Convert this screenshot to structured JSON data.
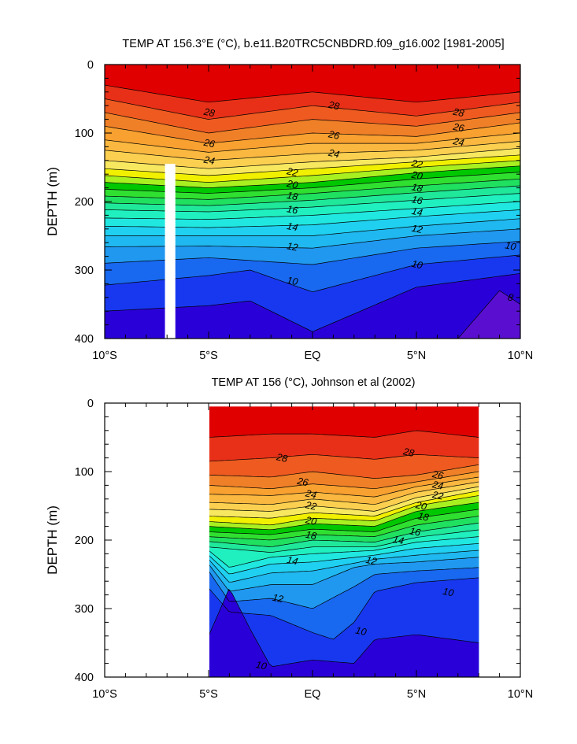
{
  "chart_data": [
    {
      "type": "contour",
      "title": "TEMP AT 156.3°E (°C), b.e11.B20TRC5CNBDRD.f09_g16.002 [1981-2005]",
      "ylabel": "DEPTH (m)",
      "xlabel": "",
      "xlim": [
        -10,
        10
      ],
      "ylim": [
        400,
        0
      ],
      "x_ticks": [
        -10,
        -5,
        0,
        5,
        10
      ],
      "x_tick_labels": [
        "10°S",
        "5°S",
        "EQ",
        "5°N",
        "10°N"
      ],
      "y_ticks": [
        0,
        100,
        200,
        300,
        400
      ],
      "y_tick_labels": [
        "0",
        "100",
        "200",
        "300",
        "400"
      ],
      "gap_band": {
        "x_start": -7.1,
        "x_end": -6.6,
        "depth_start": 145,
        "depth_end": 400
      },
      "contour_levels": [
        8,
        9,
        10,
        11,
        12,
        13,
        14,
        15,
        16,
        17,
        18,
        19,
        20,
        21,
        22,
        23,
        24,
        25,
        26,
        27,
        28,
        29
      ],
      "isotherms": [
        {
          "temp": 29,
          "x": [
            -10,
            -5,
            0,
            5,
            10
          ],
          "depth": [
            30,
            55,
            40,
            55,
            40
          ]
        },
        {
          "temp": 28,
          "x": [
            -10,
            -5,
            0,
            5,
            10
          ],
          "depth": [
            50,
            80,
            60,
            75,
            55
          ]
        },
        {
          "temp": 27,
          "x": [
            -10,
            -5,
            0,
            5,
            10
          ],
          "depth": [
            70,
            100,
            80,
            90,
            70
          ]
        },
        {
          "temp": 26,
          "x": [
            -10,
            -5,
            0,
            5,
            10
          ],
          "depth": [
            90,
            115,
            100,
            105,
            85
          ]
        },
        {
          "temp": 25,
          "x": [
            -10,
            -5,
            0,
            5,
            10
          ],
          "depth": [
            110,
            128,
            115,
            115,
            100
          ]
        },
        {
          "temp": 24,
          "x": [
            -10,
            -5,
            0,
            5,
            10
          ],
          "depth": [
            125,
            140,
            130,
            125,
            112
          ]
        },
        {
          "temp": 23,
          "x": [
            -10,
            -5,
            0,
            5,
            10
          ],
          "depth": [
            140,
            152,
            142,
            135,
            122
          ]
        },
        {
          "temp": 22,
          "x": [
            -10,
            -5,
            0,
            5,
            10
          ],
          "depth": [
            152,
            162,
            152,
            142,
            132
          ]
        },
        {
          "temp": 21,
          "x": [
            -10,
            -5,
            0,
            5,
            10
          ],
          "depth": [
            162,
            172,
            162,
            150,
            140
          ]
        },
        {
          "temp": 20,
          "x": [
            -10,
            -5,
            0,
            5,
            10
          ],
          "depth": [
            172,
            180,
            172,
            158,
            148
          ]
        },
        {
          "temp": 19,
          "x": [
            -10,
            -5,
            0,
            5,
            10
          ],
          "depth": [
            182,
            188,
            180,
            167,
            157
          ]
        },
        {
          "temp": 18,
          "x": [
            -10,
            -5,
            0,
            5,
            10
          ],
          "depth": [
            192,
            197,
            188,
            177,
            167
          ]
        },
        {
          "temp": 17,
          "x": [
            -10,
            -5,
            0,
            5,
            10
          ],
          "depth": [
            202,
            206,
            198,
            187,
            177
          ]
        },
        {
          "temp": 16,
          "x": [
            -10,
            -5,
            0,
            5,
            10
          ],
          "depth": [
            212,
            215,
            208,
            198,
            188
          ]
        },
        {
          "temp": 15,
          "x": [
            -10,
            -5,
            0,
            5,
            10
          ],
          "depth": [
            224,
            226,
            220,
            210,
            200
          ]
        },
        {
          "temp": 14,
          "x": [
            -10,
            -5,
            0,
            5,
            10
          ],
          "depth": [
            236,
            238,
            234,
            222,
            212
          ]
        },
        {
          "temp": 13,
          "x": [
            -10,
            -5,
            0,
            5,
            10
          ],
          "depth": [
            250,
            250,
            250,
            236,
            225
          ]
        },
        {
          "temp": 12,
          "x": [
            -10,
            -5,
            0,
            5,
            10
          ],
          "depth": [
            266,
            265,
            268,
            250,
            240
          ]
        },
        {
          "temp": 11,
          "x": [
            -10,
            -5,
            0,
            5,
            10
          ],
          "depth": [
            290,
            282,
            292,
            268,
            258
          ]
        },
        {
          "temp": 10,
          "x": [
            -10,
            -5,
            -3,
            0,
            5,
            10
          ],
          "depth": [
            322,
            308,
            300,
            332,
            292,
            278
          ]
        },
        {
          "temp": 9,
          "x": [
            -10,
            -5,
            -3,
            0,
            5,
            10
          ],
          "depth": [
            360,
            352,
            345,
            390,
            325,
            305
          ]
        },
        {
          "temp": 8,
          "x": [
            7,
            9,
            10
          ],
          "depth": [
            400,
            330,
            350
          ]
        }
      ],
      "contour_labels": [
        {
          "text": "28",
          "x": -5,
          "depth": 70
        },
        {
          "text": "28",
          "x": 1,
          "depth": 60
        },
        {
          "text": "28",
          "x": 7,
          "depth": 70
        },
        {
          "text": "26",
          "x": -5,
          "depth": 115
        },
        {
          "text": "26",
          "x": 1,
          "depth": 103
        },
        {
          "text": "26",
          "x": 7,
          "depth": 92
        },
        {
          "text": "24",
          "x": -5,
          "depth": 140
        },
        {
          "text": "24",
          "x": 1,
          "depth": 130
        },
        {
          "text": "24",
          "x": 7,
          "depth": 113
        },
        {
          "text": "22",
          "x": -1,
          "depth": 157
        },
        {
          "text": "22",
          "x": 5,
          "depth": 145
        },
        {
          "text": "20",
          "x": -1,
          "depth": 175
        },
        {
          "text": "20",
          "x": 5,
          "depth": 162
        },
        {
          "text": "18",
          "x": -1,
          "depth": 192
        },
        {
          "text": "18",
          "x": 5,
          "depth": 180
        },
        {
          "text": "16",
          "x": -1,
          "depth": 212
        },
        {
          "text": "16",
          "x": 5,
          "depth": 198
        },
        {
          "text": "14",
          "x": -1,
          "depth": 237
        },
        {
          "text": "14",
          "x": 5,
          "depth": 215
        },
        {
          "text": "12",
          "x": -1,
          "depth": 266
        },
        {
          "text": "12",
          "x": 5,
          "depth": 240
        },
        {
          "text": "10",
          "x": -1,
          "depth": 316
        },
        {
          "text": "10",
          "x": 5,
          "depth": 292
        },
        {
          "text": "10",
          "x": 9.5,
          "depth": 265
        },
        {
          "text": "8",
          "x": 9.5,
          "depth": 340
        }
      ]
    },
    {
      "type": "contour",
      "title": "TEMP AT 156 (°C), Johnson et al (2002)",
      "ylabel": "DEPTH (m)",
      "xlabel": "",
      "xlim": [
        -10,
        10
      ],
      "ylim": [
        400,
        0
      ],
      "data_xlim": [
        -5,
        8
      ],
      "data_depth_start": 5,
      "x_ticks": [
        -10,
        -5,
        0,
        5,
        10
      ],
      "x_tick_labels": [
        "10°S",
        "5°S",
        "EQ",
        "5°N",
        "10°N"
      ],
      "y_ticks": [
        0,
        100,
        200,
        300,
        400
      ],
      "y_tick_labels": [
        "0",
        "100",
        "200",
        "300",
        "400"
      ],
      "contour_levels": [
        9,
        10,
        11,
        12,
        13,
        14,
        15,
        16,
        17,
        18,
        19,
        20,
        21,
        22,
        23,
        24,
        25,
        26,
        27,
        28,
        29
      ],
      "isotherms": [
        {
          "temp": 29,
          "x": [
            -5,
            -2,
            0,
            3,
            5,
            8
          ],
          "depth": [
            50,
            45,
            45,
            50,
            40,
            50
          ]
        },
        {
          "temp": 28,
          "x": [
            -5,
            -2,
            0,
            3,
            5,
            8
          ],
          "depth": [
            85,
            80,
            75,
            82,
            75,
            80
          ]
        },
        {
          "temp": 27,
          "x": [
            -5,
            -2,
            0,
            3,
            5,
            8
          ],
          "depth": [
            105,
            108,
            100,
            110,
            105,
            90
          ]
        },
        {
          "temp": 26,
          "x": [
            -5,
            -2,
            0,
            3,
            5,
            8
          ],
          "depth": [
            120,
            125,
            118,
            125,
            115,
            100
          ]
        },
        {
          "temp": 25,
          "x": [
            -5,
            -2,
            0,
            3,
            5,
            8
          ],
          "depth": [
            133,
            135,
            130,
            137,
            122,
            108
          ]
        },
        {
          "temp": 24,
          "x": [
            -5,
            -2,
            0,
            3,
            5,
            8
          ],
          "depth": [
            145,
            148,
            140,
            148,
            130,
            115
          ]
        },
        {
          "temp": 23,
          "x": [
            -5,
            -2,
            0,
            3,
            5,
            8
          ],
          "depth": [
            155,
            158,
            150,
            158,
            138,
            122
          ]
        },
        {
          "temp": 22,
          "x": [
            -5,
            -2,
            0,
            3,
            5,
            8
          ],
          "depth": [
            165,
            168,
            160,
            165,
            145,
            128
          ]
        },
        {
          "temp": 21,
          "x": [
            -5,
            -2,
            0,
            3,
            5,
            8
          ],
          "depth": [
            173,
            178,
            168,
            172,
            150,
            135
          ]
        },
        {
          "temp": 20,
          "x": [
            -5,
            -2,
            0,
            3,
            5,
            8
          ],
          "depth": [
            180,
            185,
            176,
            180,
            158,
            145
          ]
        },
        {
          "temp": 19,
          "x": [
            -5,
            -2,
            0,
            3,
            5,
            8
          ],
          "depth": [
            188,
            192,
            184,
            188,
            168,
            155
          ]
        },
        {
          "temp": 18,
          "x": [
            -5,
            -2,
            0,
            3,
            5,
            8
          ],
          "depth": [
            195,
            200,
            192,
            195,
            178,
            165
          ]
        },
        {
          "temp": 17,
          "x": [
            -5,
            -2,
            0,
            3,
            5,
            8
          ],
          "depth": [
            202,
            210,
            200,
            203,
            188,
            175
          ]
        },
        {
          "temp": 16,
          "x": [
            -5,
            -2,
            0,
            3,
            5,
            8
          ],
          "depth": [
            210,
            218,
            210,
            210,
            196,
            185
          ]
        },
        {
          "temp": 15,
          "x": [
            -5,
            -4,
            -2,
            0,
            3,
            5,
            8
          ],
          "depth": [
            215,
            240,
            225,
            220,
            215,
            203,
            195
          ]
        },
        {
          "temp": 14,
          "x": [
            -5,
            -4,
            -2,
            0,
            3,
            5,
            8
          ],
          "depth": [
            222,
            250,
            235,
            232,
            222,
            212,
            205
          ]
        },
        {
          "temp": 13,
          "x": [
            -5,
            -4,
            -2,
            0,
            3,
            5,
            8
          ],
          "depth": [
            228,
            262,
            248,
            245,
            228,
            222,
            215
          ]
        },
        {
          "temp": 12,
          "x": [
            -5,
            -4,
            -2,
            0,
            2,
            3,
            5,
            8
          ],
          "depth": [
            235,
            275,
            265,
            265,
            240,
            235,
            232,
            225
          ]
        },
        {
          "temp": 11,
          "x": [
            -5,
            -4,
            -2,
            0,
            2,
            3,
            5,
            8
          ],
          "depth": [
            245,
            290,
            285,
            300,
            268,
            250,
            245,
            240
          ]
        },
        {
          "temp": 10,
          "x": [
            -5,
            -4,
            -2,
            0,
            1,
            2,
            3,
            5,
            8
          ],
          "depth": [
            270,
            305,
            310,
            335,
            345,
            320,
            275,
            262,
            255
          ]
        },
        {
          "temp": 9,
          "x": [
            -5,
            -4,
            -3,
            -2,
            0,
            2,
            3,
            5,
            8
          ],
          "depth": [
            340,
            270,
            330,
            385,
            375,
            380,
            345,
            338,
            350
          ]
        }
      ],
      "contour_labels": [
        {
          "text": "28",
          "x": -1.5,
          "depth": 80
        },
        {
          "text": "28",
          "x": 4.6,
          "depth": 72
        },
        {
          "text": "26",
          "x": -0.5,
          "depth": 115
        },
        {
          "text": "26",
          "x": 6,
          "depth": 105
        },
        {
          "text": "24",
          "x": -0.1,
          "depth": 133
        },
        {
          "text": "24",
          "x": 6,
          "depth": 120
        },
        {
          "text": "22",
          "x": -0.1,
          "depth": 150
        },
        {
          "text": "22",
          "x": 6,
          "depth": 135
        },
        {
          "text": "20",
          "x": -0.1,
          "depth": 172
        },
        {
          "text": "20",
          "x": 5.2,
          "depth": 150
        },
        {
          "text": "18",
          "x": -0.1,
          "depth": 193
        },
        {
          "text": "18",
          "x": 5.3,
          "depth": 166
        },
        {
          "text": "16",
          "x": 4.9,
          "depth": 188
        },
        {
          "text": "14",
          "x": -1.0,
          "depth": 230
        },
        {
          "text": "14",
          "x": 4.1,
          "depth": 200
        },
        {
          "text": "12",
          "x": -1.7,
          "depth": 285
        },
        {
          "text": "12",
          "x": 2.8,
          "depth": 230
        },
        {
          "text": "10",
          "x": 2.3,
          "depth": 333
        },
        {
          "text": "10",
          "x": -2.5,
          "depth": 383
        },
        {
          "text": "10",
          "x": 6.5,
          "depth": 276
        }
      ]
    }
  ]
}
